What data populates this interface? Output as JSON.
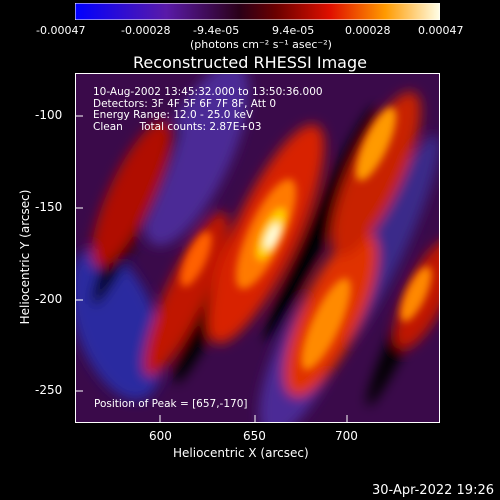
{
  "colorbar": {
    "ticks": [
      "-0.00047",
      "-0.00028",
      "-9.4e-05",
      "9.4e-05",
      "0.00028",
      "0.00047"
    ],
    "units": "(photons cm⁻² s⁻¹ asec⁻²)"
  },
  "title": "Reconstructed RHESSI Image",
  "info": {
    "line1": "10-Aug-2002 13:45:32.000 to 13:50:36.000",
    "line2": "Detectors: 3F 4F 5F 6F 7F 8F, Att 0",
    "line3": "Energy Range: 12.0 - 25.0 keV",
    "line4": "Clean     Total counts: 2.87E+03"
  },
  "peak": "Position of Peak = [657,-170]",
  "xaxis": {
    "label": "Heliocentric X (arcsec)",
    "ticks": [
      "600",
      "650",
      "700"
    ]
  },
  "yaxis": {
    "label": "Heliocentric Y (arcsec)",
    "ticks": [
      "-100",
      "-150",
      "-200",
      "-250"
    ]
  },
  "timestamp": "30-Apr-2022 19:26"
}
